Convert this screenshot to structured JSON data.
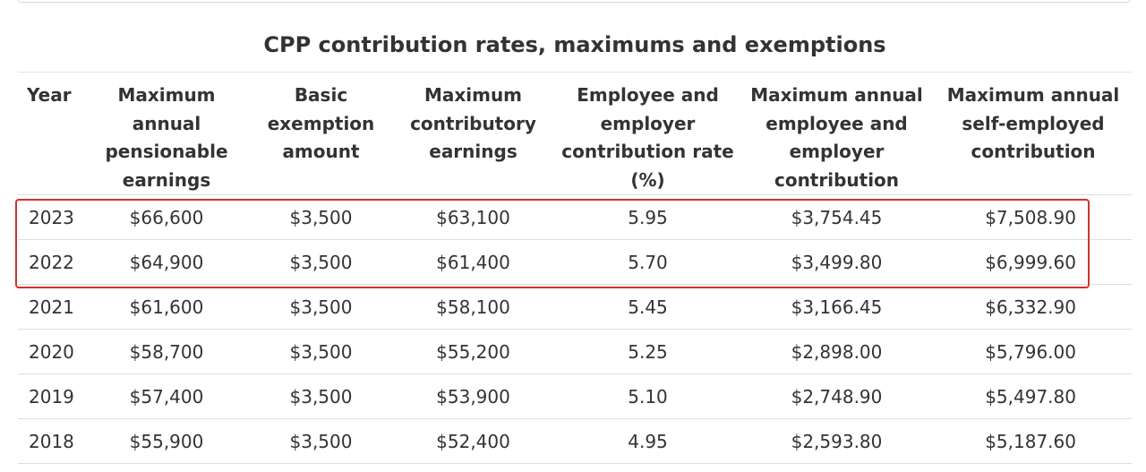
{
  "table": {
    "caption": "CPP contribution rates, maximums and exemptions",
    "headers": [
      "Year",
      "Maximum annual pensionable earnings",
      "Basic exemption amount",
      "Maximum contributory earnings",
      "Employee and employer contribution rate (%)",
      "Maximum annual employee and employer contribution",
      "Maximum annual self-employed contribution"
    ],
    "rows": [
      [
        "2023",
        "$66,600",
        "$3,500",
        "$63,100",
        "5.95",
        "$3,754.45",
        "$7,508.90"
      ],
      [
        "2022",
        "$64,900",
        "$3,500",
        "$61,400",
        "5.70",
        "$3,499.80",
        "$6,999.60"
      ],
      [
        "2021",
        "$61,600",
        "$3,500",
        "$58,100",
        "5.45",
        "$3,166.45",
        "$6,332.90"
      ],
      [
        "2020",
        "$58,700",
        "$3,500",
        "$55,200",
        "5.25",
        "$2,898.00",
        "$5,796.00"
      ],
      [
        "2019",
        "$57,400",
        "$3,500",
        "$53,900",
        "5.10",
        "$2,748.90",
        "$5,497.80"
      ],
      [
        "2018",
        "$55,900",
        "$3,500",
        "$52,400",
        "4.95",
        "$2,593.80",
        "$5,187.60"
      ]
    ]
  },
  "highlight": {
    "rows_highlighted": [
      "2023",
      "2022"
    ],
    "color": "#d2322d"
  }
}
